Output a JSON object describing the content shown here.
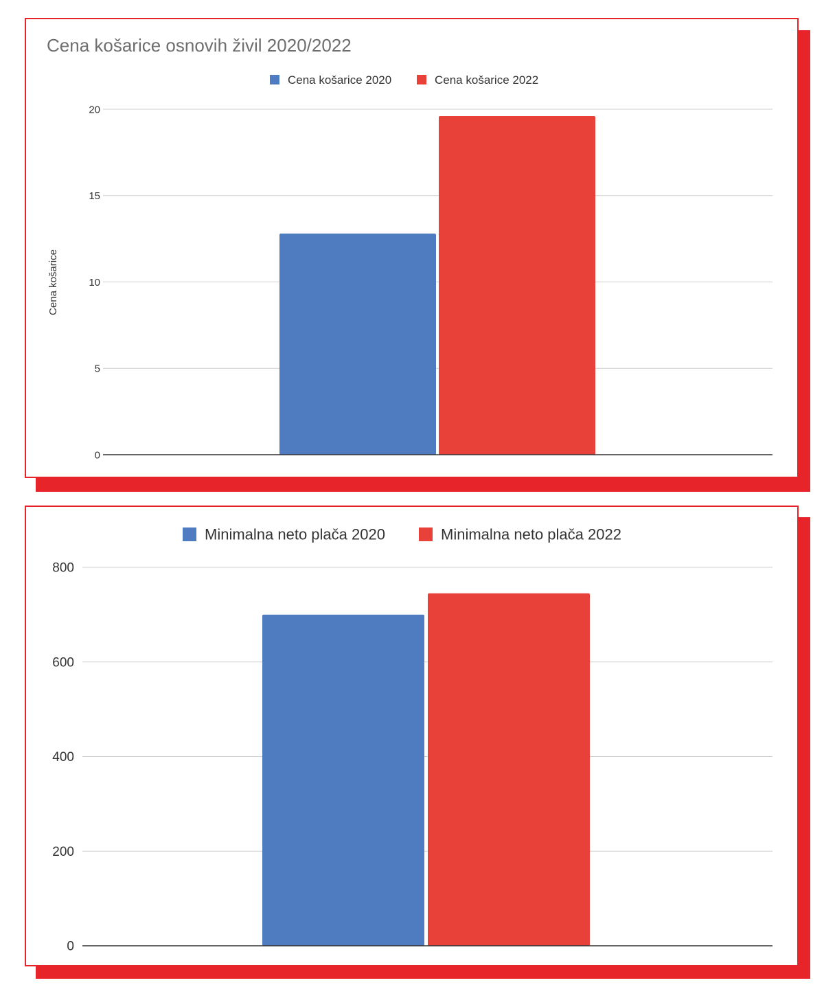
{
  "chart_data": [
    {
      "type": "bar",
      "title": "Cena košarice osnovih živil 2020/2022",
      "ylabel": "Cena košarice",
      "xlabel": "",
      "categories": [
        ""
      ],
      "series": [
        {
          "name": "Cena košarice 2020",
          "values": [
            12.8
          ],
          "color": "#4f7bc0"
        },
        {
          "name": "Cena košarice 2022",
          "values": [
            19.6
          ],
          "color": "#e8413a"
        }
      ],
      "ylim": [
        0,
        20
      ],
      "yticks": [
        "0",
        "5",
        "10",
        "15",
        "20"
      ],
      "legend": "top-center",
      "grid": true
    },
    {
      "type": "bar",
      "title": "",
      "ylabel": "",
      "xlabel": "",
      "categories": [
        ""
      ],
      "series": [
        {
          "name": "Minimalna neto plača 2020",
          "values": [
            700
          ],
          "color": "#4f7bc0"
        },
        {
          "name": "Minimalna neto plača 2022",
          "values": [
            745
          ],
          "color": "#e8413a"
        }
      ],
      "ylim": [
        0,
        800
      ],
      "yticks": [
        "0",
        "200",
        "400",
        "600",
        "800"
      ],
      "legend": "top-center",
      "grid": true
    }
  ],
  "colors": {
    "frame": "#e8242b",
    "series_2020": "#4f7bc0",
    "series_2022": "#e8413a"
  }
}
